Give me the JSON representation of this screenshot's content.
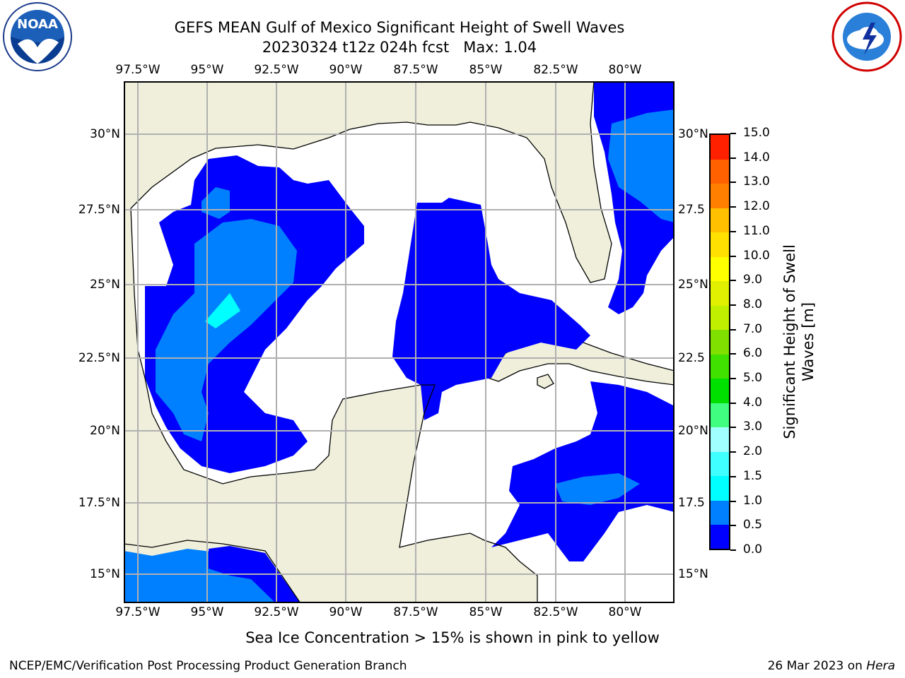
{
  "header": {
    "title_line1": "GEFS MEAN Gulf of Mexico Significant Height of Swell Waves",
    "title_line2": "20230324 t12z 024h fcst   Max: 1.04"
  },
  "logos": {
    "noaa": {
      "icon": "noaa-logo-icon",
      "text": "NOAA"
    },
    "nws": {
      "icon": "nws-logo-icon"
    }
  },
  "map": {
    "lon_ticks": [
      "97.5°W",
      "95°W",
      "92.5°W",
      "90°W",
      "87.5°W",
      "85°W",
      "82.5°W",
      "80°W"
    ],
    "lat_ticks_left": [
      "30°N",
      "27.5°N",
      "25°N",
      "22.5°N",
      "20°N",
      "17.5°N",
      "15°N"
    ],
    "lat_ticks_right": [
      "30°N",
      "27.5",
      "25°N",
      "22.5",
      "20°N",
      "17.5",
      "15°N"
    ],
    "colors": {
      "land": "#efefdc",
      "ocean_low": "#ffffff",
      "band_0_0_5": "#0000ff",
      "band_0_5_1_0": "#0080ff",
      "band_1_0_1_5": "#00ffff",
      "grid": "#b0b0b0"
    }
  },
  "colorbar": {
    "labels": [
      "15.0",
      "14.0",
      "13.0",
      "12.0",
      "11.0",
      "10.0",
      "9.0",
      "8.0",
      "7.0",
      "6.0",
      "5.0",
      "4.0",
      "3.0",
      "2.0",
      "1.5",
      "1.0",
      "0.5",
      "0.0"
    ],
    "colors": [
      "#0000ff",
      "#0080ff",
      "#00ffff",
      "#40ffff",
      "#a0ffff",
      "#40ff80",
      "#00e000",
      "#40e000",
      "#80e000",
      "#c0f000",
      "#e0f000",
      "#ffff00",
      "#ffe000",
      "#ffc000",
      "#ff8000",
      "#ff6000",
      "#ff2000"
    ],
    "title_line1": "Significant Height of Swell",
    "title_line2": "Waves [m]"
  },
  "note": "Sea Ice Concentration > 15% is shown in pink to yellow",
  "footer": {
    "left": "NCEP/EMC/Verification Post Processing Product Generation Branch",
    "right_date": "26 Mar 2023 on ",
    "right_machine": "Hera"
  }
}
